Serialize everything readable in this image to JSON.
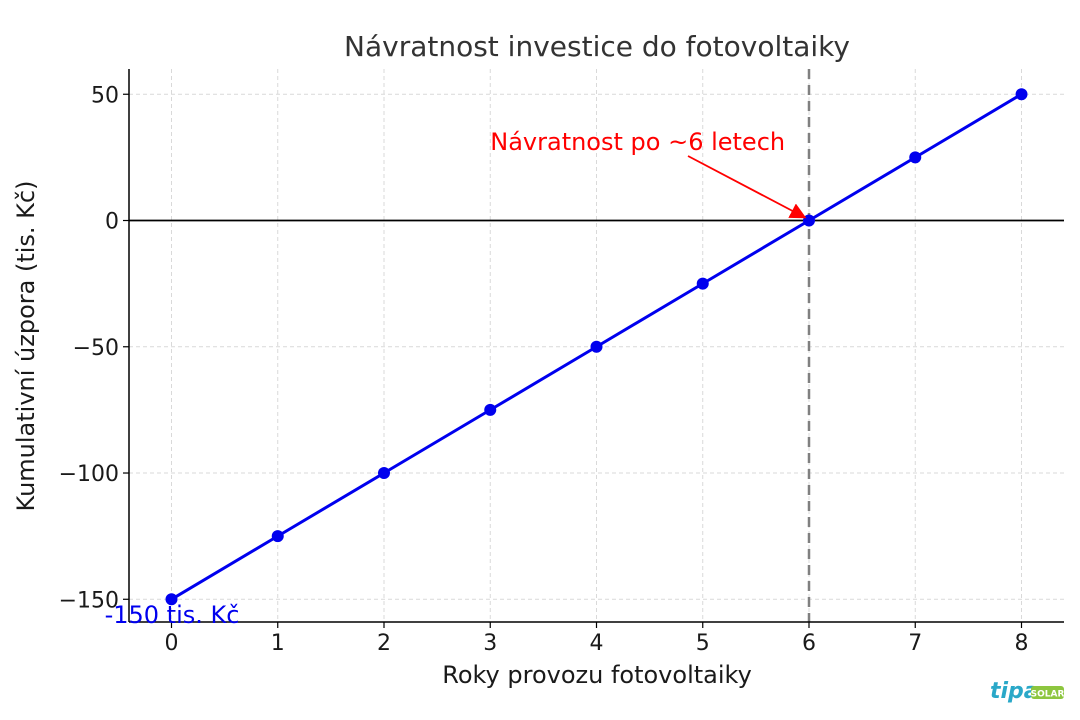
{
  "chart_data": {
    "type": "line",
    "title": "Návratnost investice do fotovoltaiky",
    "xlabel": "Roky provozu fotovoltaiky",
    "ylabel": "Kumulativní úzpora (tis. Kč)",
    "x": [
      0,
      1,
      2,
      3,
      4,
      5,
      6,
      7,
      8
    ],
    "series": [
      {
        "values": [
          -150,
          -125,
          -100,
          -75,
          -50,
          -25,
          0,
          25,
          50
        ],
        "color": "#0000ee"
      }
    ],
    "xlim": [
      -0.4,
      8.4
    ],
    "ylim": [
      -159,
      60
    ],
    "xticks": [
      0,
      1,
      2,
      3,
      4,
      5,
      6,
      7,
      8
    ],
    "yticks": [
      -150,
      -100,
      -50,
      0,
      50
    ],
    "ytick_labels": [
      "−150",
      "−100",
      "−50",
      "0",
      "50"
    ],
    "grid": true,
    "reference_lines": {
      "horizontal_y": 0,
      "vertical_x": 6
    },
    "annotations": [
      {
        "text": "Návratnost po ~6 letech",
        "color": "#ff0000",
        "target": [
          6,
          0
        ],
        "anchor": [
          3.0,
          31
        ]
      },
      {
        "text": "-150 tis. Kč",
        "color": "#0000ee",
        "anchor": [
          -0.63,
          -159
        ]
      }
    ]
  },
  "logo": {
    "brand": "tipa",
    "suffix": "SOLAR",
    "brand_color": "#2aa8c8",
    "suffix_color": "#8dc63f"
  }
}
